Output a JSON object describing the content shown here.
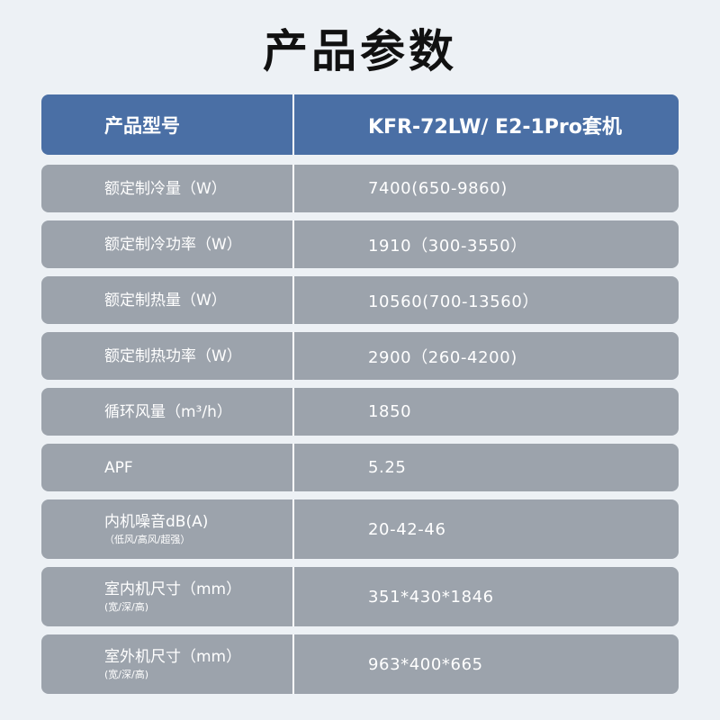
{
  "title": "产品参数",
  "header": {
    "label": "产品型号",
    "value": "KFR-72LW/ E2-1Pro套机"
  },
  "rows": [
    {
      "label": "额定制冷量（W）",
      "value": "7400(650-9860)"
    },
    {
      "label": "额定制冷功率（W）",
      "value": "1910（300-3550）"
    },
    {
      "label": "额定制热量（W）",
      "value": "10560(700-13560）"
    },
    {
      "label": "额定制热功率（W）",
      "value": "2900（260-4200)"
    },
    {
      "label": "循环风量（m³/h）",
      "value": "1850"
    },
    {
      "label": "APF",
      "value": "5.25"
    },
    {
      "label": "内机噪音dB(A)",
      "sub": "（低风/高风/超强）",
      "value": "20-42-46"
    },
    {
      "label": "室内机尺寸（mm）",
      "sub": "(宽/深/高)",
      "value": "351*430*1846"
    },
    {
      "label": "室外机尺寸（mm）",
      "sub": "(宽/深/高)",
      "value": "963*400*665"
    }
  ]
}
